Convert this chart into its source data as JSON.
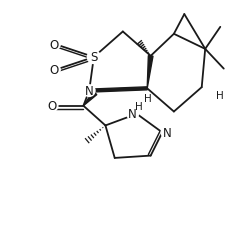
{
  "bg_color": "#ffffff",
  "line_color": "#1a1a1a",
  "line_width": 1.3,
  "font_size": 7.5,
  "figsize": [
    2.48,
    2.32
  ],
  "dpi": 100,
  "xlim": [
    -0.5,
    9.5
  ],
  "ylim": [
    -0.5,
    9.5
  ]
}
